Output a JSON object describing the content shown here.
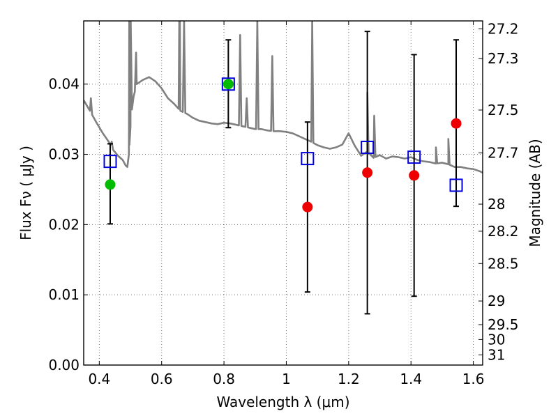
{
  "chart_data": {
    "type": "scatter",
    "xlabel": "Wavelength  λ (μm)",
    "ylabel": "Flux  Fν  ( μJy )",
    "ylabel_right": "Magnitude (AB)",
    "xlim": [
      0.35,
      1.63
    ],
    "ylim": [
      0.0,
      0.049
    ],
    "grid": true,
    "x_ticks": [
      {
        "value": 0.4,
        "label": "0.4"
      },
      {
        "value": 0.6,
        "label": "0.6"
      },
      {
        "value": 0.8,
        "label": "0.8"
      },
      {
        "value": 1.0,
        "label": "1"
      },
      {
        "value": 1.2,
        "label": "1.2"
      },
      {
        "value": 1.4,
        "label": "1.4"
      },
      {
        "value": 1.6,
        "label": "1.6"
      }
    ],
    "y_ticks": [
      {
        "value": 0.0,
        "label": "0.00"
      },
      {
        "value": 0.01,
        "label": "0.01"
      },
      {
        "value": 0.02,
        "label": "0.02"
      },
      {
        "value": 0.03,
        "label": "0.03"
      },
      {
        "value": 0.04,
        "label": "0.04"
      }
    ],
    "right_ticks": [
      {
        "mag": 27.2,
        "label": "27.2"
      },
      {
        "mag": 27.3,
        "label": "27.3"
      },
      {
        "mag": 27.5,
        "label": "27.5"
      },
      {
        "mag": 27.7,
        "label": "27.7"
      },
      {
        "mag": 28.0,
        "label": "28"
      },
      {
        "mag": 28.2,
        "label": "28.2"
      },
      {
        "mag": 28.5,
        "label": "28.5"
      },
      {
        "mag": 29.0,
        "label": "29"
      },
      {
        "mag": 29.5,
        "label": "29.5"
      },
      {
        "mag": 30.0,
        "label": "30"
      },
      {
        "mag": 31.0,
        "label": "31"
      }
    ],
    "colors": {
      "model": "#808080",
      "detection": "#00bb00",
      "non_detection": "#ee0000",
      "model_flux": "#0000dd",
      "errorbar": "#000000"
    },
    "model_spectrum": {
      "x": [
        0.35,
        0.37,
        0.39,
        0.41,
        0.43,
        0.445,
        0.46,
        0.475,
        0.485,
        0.49,
        0.495,
        0.5,
        0.505,
        0.51,
        0.52,
        0.54,
        0.56,
        0.58,
        0.6,
        0.62,
        0.64,
        0.66,
        0.68,
        0.7,
        0.72,
        0.74,
        0.76,
        0.78,
        0.8,
        0.82,
        0.84,
        0.86,
        0.88,
        0.9,
        0.92,
        0.94,
        0.96,
        0.98,
        1.0,
        1.02,
        1.04,
        1.06,
        1.08,
        1.1,
        1.12,
        1.14,
        1.16,
        1.18,
        1.2,
        1.22,
        1.24,
        1.26,
        1.28,
        1.3,
        1.32,
        1.34,
        1.36,
        1.38,
        1.4,
        1.42,
        1.44,
        1.46,
        1.48,
        1.5,
        1.52,
        1.54,
        1.56,
        1.58,
        1.6,
        1.62,
        1.63
      ],
      "y": [
        0.0377,
        0.0362,
        0.0346,
        0.0331,
        0.0318,
        0.0306,
        0.0298,
        0.0292,
        0.0284,
        0.0282,
        0.03,
        0.0338,
        0.0365,
        0.0382,
        0.04,
        0.0406,
        0.041,
        0.0404,
        0.0394,
        0.038,
        0.0372,
        0.0362,
        0.0358,
        0.0352,
        0.0348,
        0.0346,
        0.0344,
        0.0343,
        0.0345,
        0.0344,
        0.0342,
        0.034,
        0.0338,
        0.0336,
        0.0336,
        0.0334,
        0.0333,
        0.0333,
        0.0332,
        0.033,
        0.0326,
        0.0322,
        0.0318,
        0.0313,
        0.031,
        0.0308,
        0.031,
        0.0314,
        0.033,
        0.0312,
        0.0298,
        0.0304,
        0.0295,
        0.0299,
        0.0294,
        0.0297,
        0.0296,
        0.0294,
        0.0296,
        0.0292,
        0.029,
        0.0289,
        0.0287,
        0.0288,
        0.0286,
        0.0282,
        0.0282,
        0.028,
        0.0279,
        0.0276,
        0.0274
      ]
    },
    "emission_lines": [
      {
        "x": 0.373,
        "peak": 0.038
      },
      {
        "x": 0.44,
        "peak": 0.0318
      },
      {
        "x": 0.4962,
        "peak": 0.049
      },
      {
        "x": 0.5008,
        "peak": 0.049
      },
      {
        "x": 0.518,
        "peak": 0.0445
      },
      {
        "x": 0.6565,
        "peak": 0.049
      },
      {
        "x": 0.6585,
        "peak": 0.049
      },
      {
        "x": 0.672,
        "peak": 0.049
      },
      {
        "x": 0.852,
        "peak": 0.047
      },
      {
        "x": 0.873,
        "peak": 0.038
      },
      {
        "x": 0.907,
        "peak": 0.049
      },
      {
        "x": 0.955,
        "peak": 0.044
      },
      {
        "x": 1.083,
        "peak": 0.049
      },
      {
        "x": 1.282,
        "peak": 0.0355
      },
      {
        "x": 1.26,
        "peak": 0.0388
      },
      {
        "x": 1.48,
        "peak": 0.031
      },
      {
        "x": 1.52,
        "peak": 0.0322
      }
    ],
    "series": [
      {
        "marker": "circle",
        "kind": "detection",
        "points": [
          {
            "x": 0.435,
            "y": 0.0257
          },
          {
            "x": 0.814,
            "y": 0.04
          }
        ]
      },
      {
        "marker": "circle",
        "kind": "non_detection",
        "points": [
          {
            "x": 1.068,
            "y": 0.0225
          },
          {
            "x": 1.26,
            "y": 0.0274
          },
          {
            "x": 1.41,
            "y": 0.027
          },
          {
            "x": 1.545,
            "y": 0.0344
          }
        ]
      },
      {
        "marker": "square",
        "kind": "model_flux",
        "points": [
          {
            "x": 0.435,
            "y": 0.029
          },
          {
            "x": 0.814,
            "y": 0.04
          },
          {
            "x": 1.068,
            "y": 0.0294
          },
          {
            "x": 1.26,
            "y": 0.031
          },
          {
            "x": 1.41,
            "y": 0.0296
          },
          {
            "x": 1.545,
            "y": 0.0256
          }
        ]
      }
    ],
    "errorbars": [
      {
        "x": 0.435,
        "low": 0.0201,
        "high": 0.0315
      },
      {
        "x": 0.814,
        "low": 0.0338,
        "high": 0.0463
      },
      {
        "x": 1.068,
        "low": 0.0104,
        "high": 0.0346
      },
      {
        "x": 1.26,
        "low": 0.0073,
        "high": 0.0475
      },
      {
        "x": 1.41,
        "low": 0.0098,
        "high": 0.0442
      },
      {
        "x": 1.545,
        "low": 0.0226,
        "high": 0.0463
      }
    ]
  }
}
